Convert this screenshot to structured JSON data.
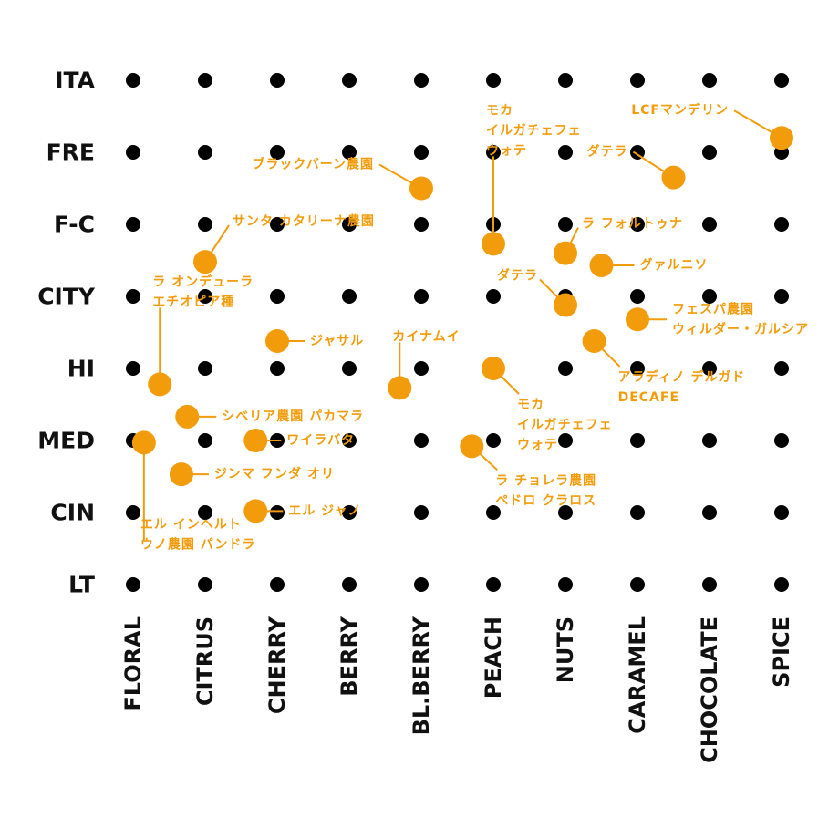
{
  "chart_data": {
    "type": "scatter",
    "categories_x": [
      "FLORAL",
      "CITRUS",
      "CHERRY",
      "BERRY",
      "BL.BERRY",
      "PEACH",
      "NUTS",
      "CARAMEL",
      "CHOCOLATE",
      "SPICE"
    ],
    "categories_y": [
      "ITA",
      "FRE",
      "F-C",
      "CITY",
      "HI",
      "MED",
      "CIN",
      "LT"
    ],
    "grid": true,
    "colors": {
      "grid_dot": "#000000",
      "point": "#f39c0b",
      "text": "#111111"
    },
    "points": [
      {
        "x": 9.0,
        "y": 0.8,
        "label": [
          "LCFマンデリン"
        ]
      },
      {
        "x": 7.5,
        "y": 1.35,
        "label": [
          "ダテラ"
        ]
      },
      {
        "x": 4.0,
        "y": 1.5,
        "label": [
          "ブラックバーン農園"
        ]
      },
      {
        "x": 5.0,
        "y": 2.27,
        "label": [
          "モカ",
          "イルガチェフェ",
          "ウォテ"
        ]
      },
      {
        "x": 6.0,
        "y": 2.4,
        "label": [
          "ラ フォルトゥナ"
        ]
      },
      {
        "x": 6.5,
        "y": 2.57,
        "label": [
          "グァルニソ"
        ]
      },
      {
        "x": 1.0,
        "y": 2.52,
        "label": [
          "サンタ カタリーナ農園"
        ]
      },
      {
        "x": 6.0,
        "y": 3.12,
        "label": [
          "ダテラ"
        ]
      },
      {
        "x": 7.0,
        "y": 3.32,
        "label": [
          "フェスパ農園",
          "ウィルダー・ガルシア"
        ]
      },
      {
        "x": 6.4,
        "y": 3.62,
        "label": [
          "アラディノ デルガド",
          "DECAFE"
        ]
      },
      {
        "x": 2.0,
        "y": 3.62,
        "label": [
          "ジャサル"
        ]
      },
      {
        "x": 3.7,
        "y": 4.27,
        "label": [
          "カイナムイ"
        ]
      },
      {
        "x": 0.37,
        "y": 4.22,
        "label": [
          "ラ オンデューラ",
          "エチオピア種"
        ]
      },
      {
        "x": 5.0,
        "y": 4.0,
        "label": [
          "モカ",
          "イルガチェフェ",
          "ウォテ"
        ]
      },
      {
        "x": 0.75,
        "y": 4.67,
        "label": [
          "シベリア農園 パカマラ"
        ]
      },
      {
        "x": 1.7,
        "y": 5.0,
        "label": [
          "ワイラバタ"
        ]
      },
      {
        "x": 0.15,
        "y": 5.03,
        "label": [
          "エル インヘルト",
          "ウノ農園 パンドラ"
        ]
      },
      {
        "x": 4.7,
        "y": 5.08,
        "label": [
          "ラ チョレラ農園",
          "ペドロ クラロス"
        ]
      },
      {
        "x": 0.67,
        "y": 5.47,
        "label": [
          "ジンマ フンダ オリ"
        ]
      },
      {
        "x": 1.7,
        "y": 5.98,
        "label": [
          "エル ジャノ"
        ]
      }
    ]
  }
}
